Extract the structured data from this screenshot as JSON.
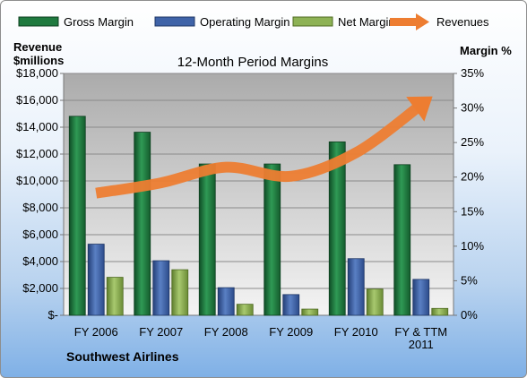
{
  "chart_data": {
    "type": "bar",
    "title": "12-Month Period Margins",
    "left_axis_title": [
      "Revenue",
      "$millions"
    ],
    "right_axis_title": "Margin %",
    "company": "Southwest Airlines",
    "categories": [
      [
        "FY 2006"
      ],
      [
        "FY 2007"
      ],
      [
        "FY 2008"
      ],
      [
        "FY 2009"
      ],
      [
        "FY 2010"
      ],
      [
        "FY & TTM",
        "2011"
      ]
    ],
    "left_ticks": [
      "$-",
      "$2,000",
      "$4,000",
      "$6,000",
      "$8,000",
      "$10,000",
      "$12,000",
      "$14,000",
      "$16,000",
      "$18,000"
    ],
    "right_ticks": [
      "0%",
      "5%",
      "10%",
      "15%",
      "20%",
      "25%",
      "30%",
      "35%"
    ],
    "ylim_left": [
      0,
      18000
    ],
    "ylim_right": [
      0,
      35
    ],
    "series": [
      {
        "name": "Gross Margin",
        "axis": "right",
        "type": "bar",
        "color": "#1f7a3f",
        "values": [
          28.8,
          26.5,
          21.9,
          21.9,
          25.1,
          21.8
        ]
      },
      {
        "name": "Operating Margin",
        "axis": "right",
        "type": "bar",
        "color": "#3f63a8",
        "values": [
          10.3,
          7.9,
          4.0,
          3.0,
          8.2,
          5.2
        ]
      },
      {
        "name": "Net Margin",
        "axis": "right",
        "type": "bar",
        "color": "#8db255",
        "values": [
          5.5,
          6.6,
          1.6,
          0.9,
          3.8,
          1.0
        ]
      },
      {
        "name": "Revenues",
        "axis": "left",
        "type": "arrow-line",
        "color": "#ed7d31",
        "values": [
          9086,
          9861,
          11023,
          10350,
          12104,
          15658
        ]
      }
    ],
    "legend_position": "top",
    "grid": true
  }
}
